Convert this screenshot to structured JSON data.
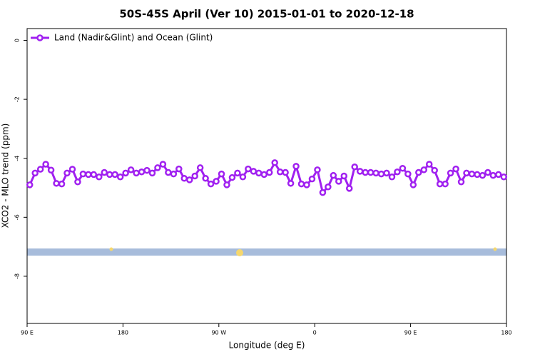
{
  "chart_data": {
    "type": "line",
    "title": "50S-45S April (Ver 10)   2015-01-01 to 2020-12-18",
    "x_label": "Longitude (deg E)",
    "y_label": "XCO2 - MLO trend (ppm)",
    "x": [
      92.5,
      97.5,
      102.5,
      107.5,
      112.5,
      117.5,
      122.5,
      127.5,
      132.5,
      137.5,
      142.5,
      147.5,
      152.5,
      157.5,
      162.5,
      167.5,
      172.5,
      177.5,
      182.5,
      187.5,
      192.5,
      197.5,
      202.5,
      207.5,
      212.5,
      217.5,
      222.5,
      227.5,
      232.5,
      237.5,
      242.5,
      247.5,
      252.5,
      257.5,
      262.5,
      267.5,
      272.5,
      277.5,
      282.5,
      287.5,
      292.5,
      297.5,
      302.5,
      307.5,
      312.5,
      317.5,
      322.5,
      327.5,
      332.5,
      337.5,
      342.5,
      347.5,
      352.5,
      357.5,
      362.5,
      367.5,
      372.5,
      377.5,
      382.5,
      387.5,
      392.5,
      397.5,
      402.5,
      407.5,
      412.5,
      417.5,
      422.5,
      427.5,
      432.5,
      437.5,
      442.5,
      447.5,
      452.5,
      457.5,
      462.5,
      467.5,
      472.5,
      477.5,
      482.5,
      487.5,
      492.5,
      497.5,
      502.5,
      507.5,
      512.5,
      517.5,
      522.5,
      527.5,
      532.5,
      537.5
    ],
    "series": [
      {
        "name": "Land (Nadir&Glint) and Ocean (Glint)",
        "color": "#a020f0",
        "values": [
          -4.9,
          -4.5,
          -4.37,
          -4.2,
          -4.4,
          -4.85,
          -4.87,
          -4.5,
          -4.37,
          -4.8,
          -4.53,
          -4.55,
          -4.55,
          -4.63,
          -4.48,
          -4.55,
          -4.55,
          -4.63,
          -4.5,
          -4.39,
          -4.5,
          -4.46,
          -4.41,
          -4.5,
          -4.32,
          -4.2,
          -4.48,
          -4.53,
          -4.36,
          -4.68,
          -4.73,
          -4.6,
          -4.32,
          -4.68,
          -4.87,
          -4.78,
          -4.53,
          -4.9,
          -4.65,
          -4.5,
          -4.63,
          -4.36,
          -4.44,
          -4.5,
          -4.55,
          -4.48,
          -4.15,
          -4.46,
          -4.48,
          -4.85,
          -4.27,
          -4.87,
          -4.9,
          -4.7,
          -4.39,
          -5.16,
          -4.97,
          -4.58,
          -4.78,
          -4.6,
          -5.02,
          -4.29,
          -4.44,
          -4.48,
          -4.48,
          -4.5,
          -4.53,
          -4.5,
          -4.63,
          -4.46,
          -4.34,
          -4.53,
          -4.9,
          -4.48,
          -4.39,
          -4.2,
          -4.41,
          -4.87,
          -4.87,
          -4.5,
          -4.36,
          -4.8,
          -4.5,
          -4.53,
          -4.55,
          -4.58,
          -4.48,
          -4.58,
          -4.55,
          -4.63
        ]
      }
    ],
    "xlim": [
      90,
      540
    ],
    "xticks": [
      {
        "value": 90,
        "label": "90 E"
      },
      180,
      {
        "value": 270,
        "label": "90 W"
      },
      {
        "value": 360,
        "label": "0"
      },
      {
        "value": 450,
        "label": "90 E"
      },
      {
        "value": 540,
        "label": "180"
      }
    ],
    "ylim": [
      -9.6,
      0.4
    ],
    "yticks": [
      0,
      -2,
      -4,
      -6,
      -8
    ],
    "legend": "top-left"
  }
}
